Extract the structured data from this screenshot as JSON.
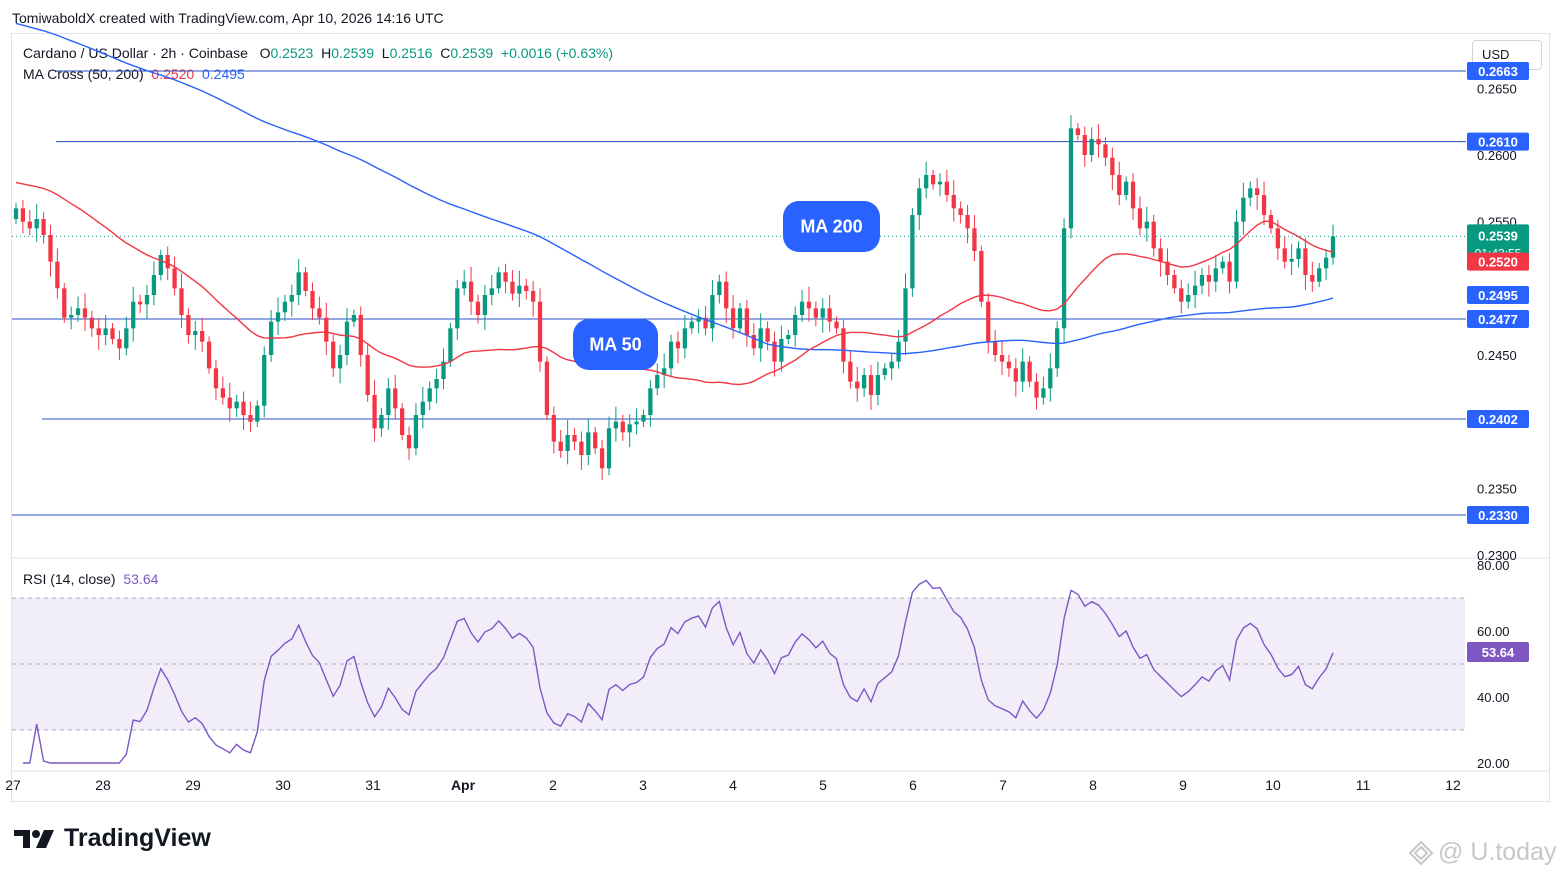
{
  "header": {
    "credit": "TomiwaboldX created with TradingView.com, Apr 10, 2026 14:16 UTC"
  },
  "legend": {
    "symbol": "Cardano / US Dollar · 2h · Coinbase",
    "o_label": "O",
    "o_value": "0.2523",
    "h_label": "H",
    "h_value": "0.2539",
    "l_label": "L",
    "l_value": "0.2516",
    "c_label": "C",
    "c_value": "0.2539",
    "change": "+0.0016 (+0.63%)",
    "ma_label": "MA Cross (50, 200)",
    "ma50_value": "0.2520",
    "ma200_value": "0.2495",
    "rsi_label": "RSI (14, close)",
    "rsi_value": "53.64"
  },
  "currency_button": "USD",
  "annotations": {
    "ma200": "MA 200",
    "ma50": "MA 50"
  },
  "footer": {
    "logo_text": "TradingView",
    "watermark": "@ U.today"
  },
  "colors": {
    "up": "#089981",
    "down": "#f23645",
    "ma50": "#f23645",
    "ma200": "#2962ff",
    "hline": "#2a4fc4",
    "rsi": "#7e57c2",
    "annotation_bg": "#2962ff"
  },
  "chart_data": {
    "type": "candlestick",
    "price_axis": {
      "range": [
        0.23,
        0.2675
      ],
      "ticks": [
        "0.2650",
        "0.2600",
        "0.2550",
        "0.2450",
        "0.2350",
        "0.2300"
      ]
    },
    "x_axis": {
      "labels": [
        "27",
        "28",
        "29",
        "30",
        "31",
        "Apr",
        "2",
        "3",
        "4",
        "5",
        "6",
        "7",
        "8",
        "9",
        "10",
        "11",
        "12"
      ],
      "label_days": [
        27,
        28,
        29,
        30,
        31,
        32,
        33,
        34,
        35,
        36,
        37,
        38,
        39,
        40,
        41,
        42,
        43
      ]
    },
    "horizontal_levels": [
      0.2663,
      0.261,
      0.2477,
      0.2402,
      0.233
    ],
    "horizontal_level_labels": [
      "0.2663",
      "0.2610",
      "0.2477",
      "0.2402",
      "0.2330"
    ],
    "last_price": {
      "value": 0.2539,
      "label": "0.2539",
      "countdown": "01:43:55"
    },
    "ma50_tag": {
      "value": 0.252,
      "label": "0.2520"
    },
    "ma200_tag": {
      "value": 0.2495,
      "label": "0.2495"
    },
    "candles_close": [
      0.256,
      0.255,
      0.2545,
      0.2552,
      0.254,
      0.252,
      0.25,
      0.2478,
      0.248,
      0.2485,
      0.2478,
      0.247,
      0.2465,
      0.247,
      0.2462,
      0.2455,
      0.247,
      0.249,
      0.2488,
      0.2495,
      0.251,
      0.2525,
      0.2515,
      0.25,
      0.248,
      0.2465,
      0.2468,
      0.246,
      0.244,
      0.2425,
      0.2418,
      0.241,
      0.2415,
      0.2405,
      0.24,
      0.2412,
      0.245,
      0.2475,
      0.2482,
      0.249,
      0.2495,
      0.2512,
      0.2498,
      0.2485,
      0.2478,
      0.246,
      0.244,
      0.245,
      0.2475,
      0.248,
      0.245,
      0.242,
      0.2395,
      0.2405,
      0.2425,
      0.241,
      0.239,
      0.238,
      0.2405,
      0.2415,
      0.2425,
      0.2432,
      0.2445,
      0.247,
      0.25,
      0.2505,
      0.249,
      0.248,
      0.2495,
      0.25,
      0.2512,
      0.2505,
      0.2496,
      0.2502,
      0.2498,
      0.249,
      0.2445,
      0.2405,
      0.2385,
      0.2378,
      0.239,
      0.2385,
      0.2375,
      0.2392,
      0.238,
      0.2365,
      0.2395,
      0.24,
      0.2392,
      0.2398,
      0.24,
      0.2405,
      0.2425,
      0.2435,
      0.244,
      0.246,
      0.2455,
      0.247,
      0.2475,
      0.2478,
      0.247,
      0.2495,
      0.2505,
      0.2485,
      0.247,
      0.2485,
      0.2465,
      0.2455,
      0.247,
      0.246,
      0.2445,
      0.2462,
      0.2465,
      0.248,
      0.249,
      0.2485,
      0.2478,
      0.2485,
      0.2475,
      0.247,
      0.2445,
      0.243,
      0.2425,
      0.2435,
      0.242,
      0.2435,
      0.244,
      0.2445,
      0.246,
      0.25,
      0.2555,
      0.2575,
      0.2585,
      0.2578,
      0.258,
      0.257,
      0.256,
      0.2555,
      0.2545,
      0.2528,
      0.249,
      0.246,
      0.245,
      0.2445,
      0.244,
      0.243,
      0.2445,
      0.243,
      0.2418,
      0.2425,
      0.244,
      0.247,
      0.2545,
      0.262,
      0.2615,
      0.26,
      0.2612,
      0.2608,
      0.2598,
      0.2585,
      0.257,
      0.258,
      0.256,
      0.2545,
      0.255,
      0.253,
      0.252,
      0.251,
      0.25,
      0.249,
      0.2495,
      0.2502,
      0.251,
      0.2505,
      0.2515,
      0.252,
      0.2505,
      0.255,
      0.2568,
      0.2575,
      0.257,
      0.2555,
      0.2545,
      0.253,
      0.252,
      0.2522,
      0.253,
      0.251,
      0.2505,
      0.2515,
      0.2523,
      0.2539
    ]
  }
}
